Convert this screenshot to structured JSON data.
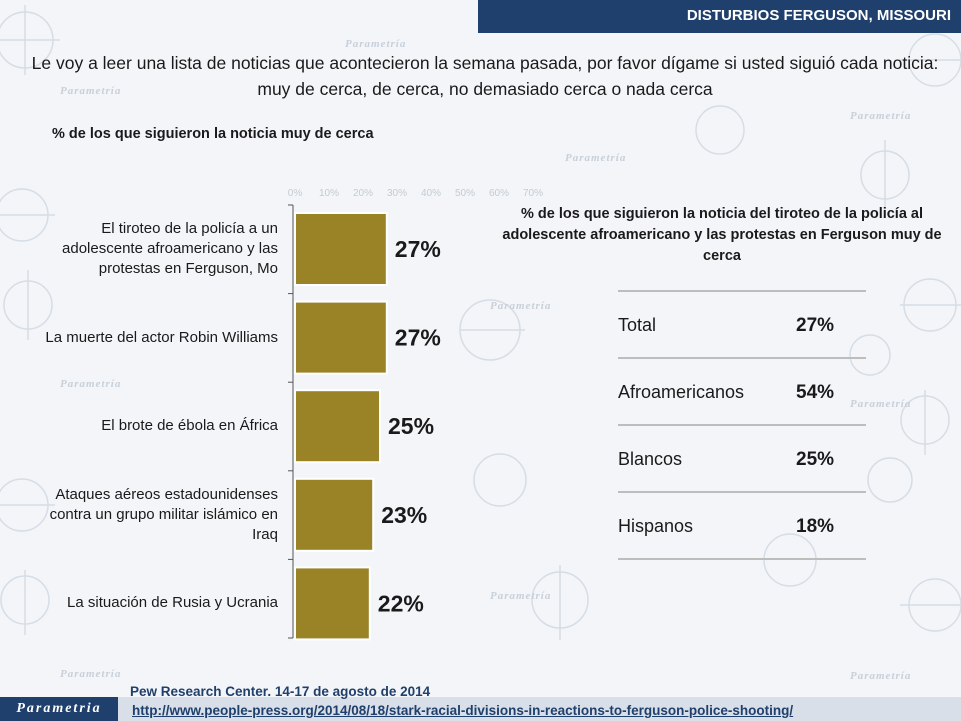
{
  "header": {
    "title": "DISTURBIOS FERGUSON, MISSOURI"
  },
  "question": "Le voy a leer una lista de noticias que acontecieron la semana pasada, por favor dígame si usted siguió cada noticia: muy de cerca, de cerca, no demasiado cerca o nada cerca",
  "watermark": {
    "brand": "Parametría"
  },
  "colors": {
    "bar": "#9a8226",
    "bar_border": "#ffffff",
    "header_bg": "#1f3f6c",
    "source_text": "#1f3f6c"
  },
  "chart_data": [
    {
      "type": "bar",
      "orientation": "horizontal",
      "title": "% de los que siguieron la noticia muy de cerca",
      "categories": [
        "El tiroteo de la policía a un adolescente afroamericano y las protestas en Ferguson, Mo",
        "La muerte del actor Robin Williams",
        "El brote de ébola en África",
        "Ataques aéreos estadounidenses contra un grupo militar islámico en Iraq",
        "La situación de Rusia y Ucrania"
      ],
      "values": [
        27,
        27,
        25,
        23,
        22
      ],
      "data_labels": [
        "27%",
        "27%",
        "25%",
        "23%",
        "22%"
      ],
      "xlim": [
        0,
        70
      ],
      "x_ticks": [
        "0%",
        "10%",
        "20%",
        "30%",
        "40%",
        "50%",
        "60%",
        "70%"
      ],
      "grid": false
    },
    {
      "type": "table",
      "title": "% de los que siguieron la noticia del tiroteo de la policía al adolescente afroamericano y las protestas en Ferguson muy de cerca",
      "rows": [
        {
          "label": "Total",
          "value": "27%"
        },
        {
          "label": "Afroamericanos",
          "value": "54%"
        },
        {
          "label": "Blancos",
          "value": "25%"
        },
        {
          "label": "Hispanos",
          "value": "18%"
        }
      ]
    }
  ],
  "footer": {
    "source": "Pew Research Center. 14-17 de agosto de 2014",
    "url": "http://www.people-press.org/2014/08/18/stark-racial-divisions-in-reactions-to-ferguson-police-shooting/",
    "logo": "Parametria"
  }
}
